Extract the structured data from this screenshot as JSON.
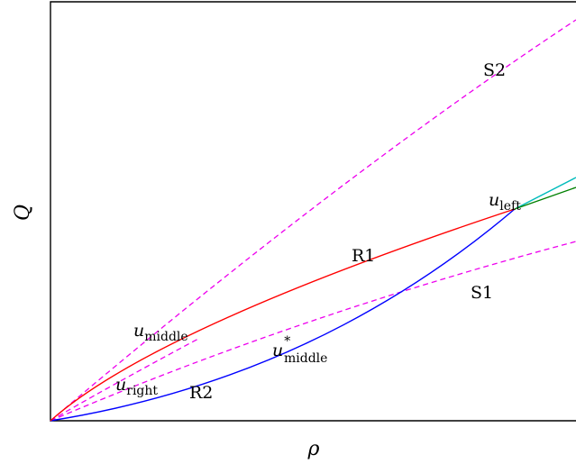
{
  "axes": {
    "xlabel": "ρ",
    "ylabel": "Q"
  },
  "curve_labels": {
    "s1": "S1",
    "s2": "S2",
    "r1": "R1",
    "r2": "R2"
  },
  "point_labels": {
    "u_left_base": "u",
    "u_left_sub": "left",
    "u_middle_base": "u",
    "u_middle_sub": "middle",
    "u_right_base": "u",
    "u_right_sub": "right",
    "u_middle_star_base": "u",
    "u_middle_star_sup": "*",
    "u_middle_star_sub": "middle"
  },
  "colors": {
    "r1": "#ff0000",
    "r2": "#0000ff",
    "shock": "#ee00ee",
    "teal": "#00bbbb",
    "green": "#008000",
    "frame": "#000000"
  }
}
